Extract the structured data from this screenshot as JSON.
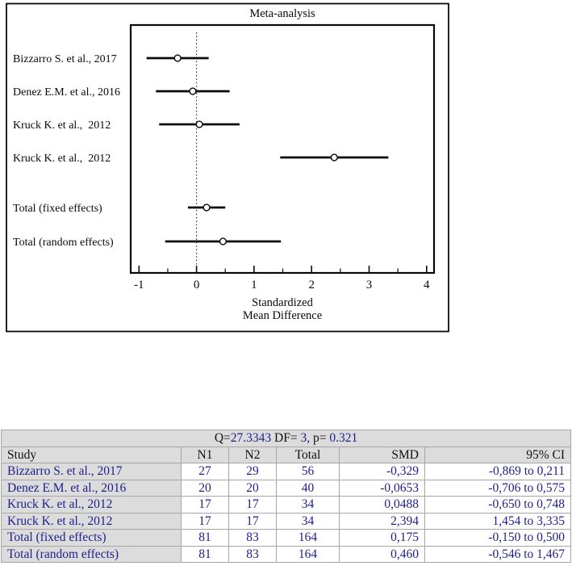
{
  "colors": {
    "navy": "#1e1e8c",
    "table_gray": "#dcdcdc",
    "border_gray": "#a6a6a6",
    "plot_black": "#0a0a0a"
  },
  "chart_data": {
    "type": "forest",
    "title": "Meta-analysis",
    "xlabel_line1": "Standardized",
    "xlabel_line2": "Mean Difference",
    "xlim": [
      -1.14,
      4.12
    ],
    "xticks": [
      -1,
      0,
      1,
      2,
      3,
      4
    ],
    "minor_xticks": [
      -0.5,
      0.5,
      1.5,
      2.5,
      3.5
    ],
    "reference_line_x": 0,
    "grid": false,
    "marker": "open-circle",
    "legend": "none",
    "studies": [
      {
        "label": "Bizzarro S. et al., 2017",
        "smd": -0.329,
        "ci_low": -0.869,
        "ci_high": 0.211
      },
      {
        "label": "Denez E.M. et al., 2016",
        "smd": -0.0653,
        "ci_low": -0.706,
        "ci_high": 0.575
      },
      {
        "label": "Kruck K. et al.,  2012",
        "smd": 0.0488,
        "ci_low": -0.65,
        "ci_high": 0.748
      },
      {
        "label": "Kruck K. et al.,  2012",
        "smd": 2.394,
        "ci_low": 1.454,
        "ci_high": 3.335
      },
      {
        "label": "Total (fixed effects)",
        "smd": 0.175,
        "ci_low": -0.15,
        "ci_high": 0.5
      },
      {
        "label": "Total (random effects)",
        "smd": 0.46,
        "ci_low": -0.546,
        "ci_high": 1.467
      }
    ]
  },
  "table": {
    "heterogeneity": {
      "text": "Q=27.3343 DF= 3, p= 0.321",
      "segments": [
        {
          "text": "Q=",
          "style": "label"
        },
        {
          "text": "27.3343",
          "style": "value"
        },
        {
          "text": " DF= ",
          "style": "label"
        },
        {
          "text": "3,",
          "style": "value"
        },
        {
          "text": " p= ",
          "style": "label"
        },
        {
          "text": "0.321",
          "style": "value"
        }
      ]
    },
    "columns": [
      "Study",
      "N1",
      "N2",
      "Total",
      "SMD",
      "95% CI"
    ],
    "rows": [
      [
        "Bizzarro S. et al., 2017",
        "27",
        "29",
        "56",
        "-0,329",
        "-0,869 to 0,211"
      ],
      [
        "Denez E.M. et al., 2016",
        "20",
        "20",
        "40",
        "-0,0653",
        "-0,706 to 0,575"
      ],
      [
        "Kruck K. et al., 2012",
        "17",
        "17",
        "34",
        "0,0488",
        "-0,650 to 0,748"
      ],
      [
        "Kruck K. et al., 2012",
        "17",
        "17",
        "34",
        "2,394",
        "1,454 to 3,335"
      ],
      [
        "Total (fixed effects)",
        "81",
        "83",
        "164",
        "0,175",
        "-0,150 to 0,500"
      ],
      [
        "Total (random effects)",
        "81",
        "83",
        "164",
        "0,460",
        "-0,546 to 1,467"
      ]
    ]
  }
}
